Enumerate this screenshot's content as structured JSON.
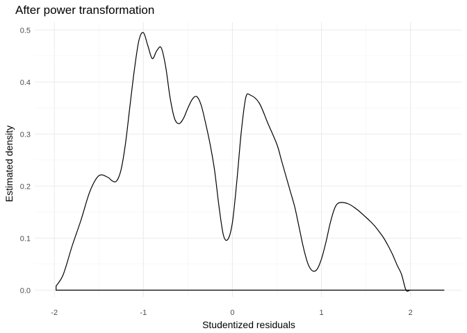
{
  "chart_data": {
    "type": "area",
    "title": "After power transformation",
    "xlabel": "Studentized residuals",
    "ylabel": "Estimated density",
    "xlim": [
      -2.22,
      2.58
    ],
    "ylim": [
      -0.013,
      0.515
    ],
    "x_ticks": [
      -2,
      -1,
      0,
      1,
      2
    ],
    "x_tick_labels": [
      "-2",
      "-1",
      "0",
      "1",
      "2"
    ],
    "y_ticks": [
      0.0,
      0.1,
      0.2,
      0.3,
      0.4,
      0.5
    ],
    "y_tick_labels": [
      "0.0",
      "0.1",
      "0.2",
      "0.3",
      "0.4",
      "0.5"
    ],
    "grid": true,
    "fill": "none",
    "line_color": "#000000",
    "series": [
      {
        "x": [
          -1.98,
          -1.9,
          -1.8,
          -1.7,
          -1.6,
          -1.5,
          -1.4,
          -1.35,
          -1.3,
          -1.25,
          -1.2,
          -1.15,
          -1.1,
          -1.05,
          -1.0,
          -0.95,
          -0.9,
          -0.85,
          -0.8,
          -0.75,
          -0.7,
          -0.65,
          -0.6,
          -0.55,
          -0.5,
          -0.45,
          -0.4,
          -0.35,
          -0.3,
          -0.25,
          -0.2,
          -0.15,
          -0.1,
          -0.05,
          0.0,
          0.05,
          0.1,
          0.15,
          0.2,
          0.3,
          0.4,
          0.5,
          0.55,
          0.6,
          0.65,
          0.7,
          0.75,
          0.8,
          0.85,
          0.9,
          0.95,
          1.0,
          1.05,
          1.1,
          1.15,
          1.2,
          1.3,
          1.4,
          1.5,
          1.55,
          1.6,
          1.65,
          1.7,
          1.75,
          1.8,
          1.85,
          1.9,
          1.95,
          2.0,
          2.1,
          2.2,
          2.3,
          2.38
        ],
        "y": [
          0.008,
          0.03,
          0.085,
          0.135,
          0.19,
          0.22,
          0.217,
          0.21,
          0.21,
          0.232,
          0.283,
          0.355,
          0.425,
          0.48,
          0.495,
          0.47,
          0.445,
          0.46,
          0.466,
          0.43,
          0.37,
          0.33,
          0.32,
          0.33,
          0.35,
          0.367,
          0.372,
          0.355,
          0.32,
          0.28,
          0.23,
          0.16,
          0.105,
          0.098,
          0.13,
          0.21,
          0.305,
          0.37,
          0.375,
          0.36,
          0.32,
          0.28,
          0.25,
          0.22,
          0.19,
          0.16,
          0.12,
          0.08,
          0.05,
          0.037,
          0.04,
          0.06,
          0.092,
          0.13,
          0.158,
          0.168,
          0.166,
          0.155,
          0.14,
          0.132,
          0.123,
          0.112,
          0.1,
          0.085,
          0.068,
          0.048,
          0.03,
          0.0,
          0.0,
          0.0,
          0.0,
          0.0,
          0.0
        ]
      }
    ]
  }
}
